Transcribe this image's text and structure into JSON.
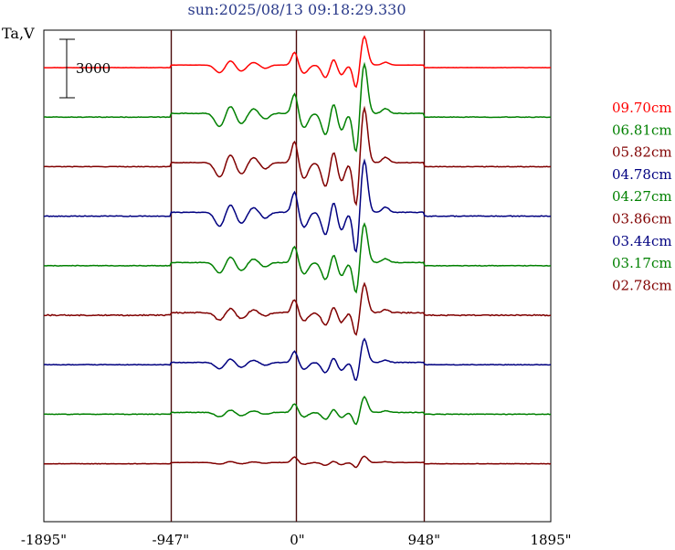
{
  "title": "sun:2025/08/13 09:18:29.330",
  "chart_data": {
    "type": "line",
    "ylabel": "Ta,V",
    "scale_bar_label": "3000",
    "scale_bar_value": 3000,
    "x_tick_labels": [
      "-1895\"",
      "-947\"",
      "0\"",
      "948\"",
      "1895\""
    ],
    "x_ticks": [
      -1895,
      -947,
      0,
      948,
      1895
    ],
    "xlim": [
      -1895,
      1895
    ],
    "vertical_markers": [
      -947,
      -12,
      948
    ],
    "series": [
      {
        "name": "09.70cm",
        "color": "#ff0000",
        "amp": 0.55,
        "noise": 0.1
      },
      {
        "name": "06.81cm",
        "color": "#008000",
        "amp": 0.95,
        "noise": 0.3
      },
      {
        "name": "05.82cm",
        "color": "#800000",
        "amp": 1.05,
        "noise": 0.25
      },
      {
        "name": "04.78cm",
        "color": "#000080",
        "amp": 1.0,
        "noise": 0.35
      },
      {
        "name": "04.27cm",
        "color": "#008000",
        "amp": 0.75,
        "noise": 0.3
      },
      {
        "name": "03.86cm",
        "color": "#800000",
        "amp": 0.55,
        "noise": 0.55
      },
      {
        "name": "03.44cm",
        "color": "#000080",
        "amp": 0.45,
        "noise": 0.3
      },
      {
        "name": "03.17cm",
        "color": "#008000",
        "amp": 0.3,
        "noise": 0.3
      },
      {
        "name": "02.78cm",
        "color": "#800000",
        "amp": 0.12,
        "noise": 0.2
      }
    ],
    "grid": false
  }
}
